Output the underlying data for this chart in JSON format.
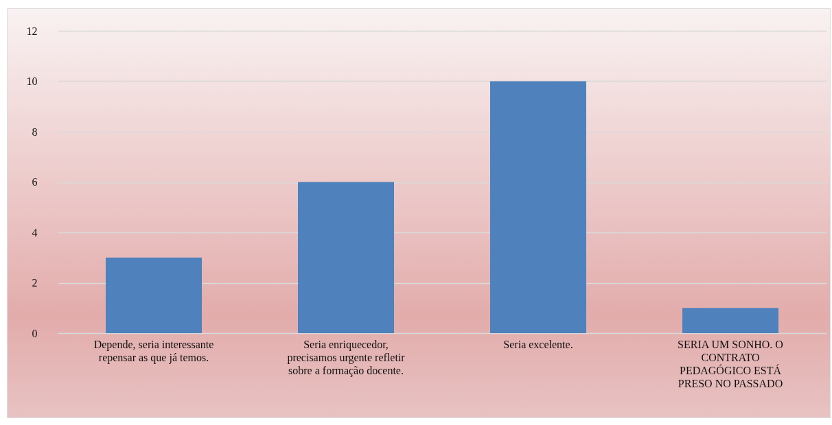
{
  "chart_data": {
    "type": "bar",
    "categories": [
      "Depende, seria interessante repensar as que já temos.",
      "Seria enriquecedor, precisamos urgente refletir sobre a formação docente.",
      "Seria excelente.",
      "SERIA UM SONHO. O CONTRATO PEDAGÓGICO ESTÁ PRESO NO PASSADO"
    ],
    "values": [
      3,
      6,
      10,
      1
    ],
    "color": "#4f81bd",
    "ylim": [
      0,
      12
    ],
    "yticks": [
      0,
      2,
      4,
      6,
      8,
      10,
      12
    ],
    "grid": "y"
  }
}
